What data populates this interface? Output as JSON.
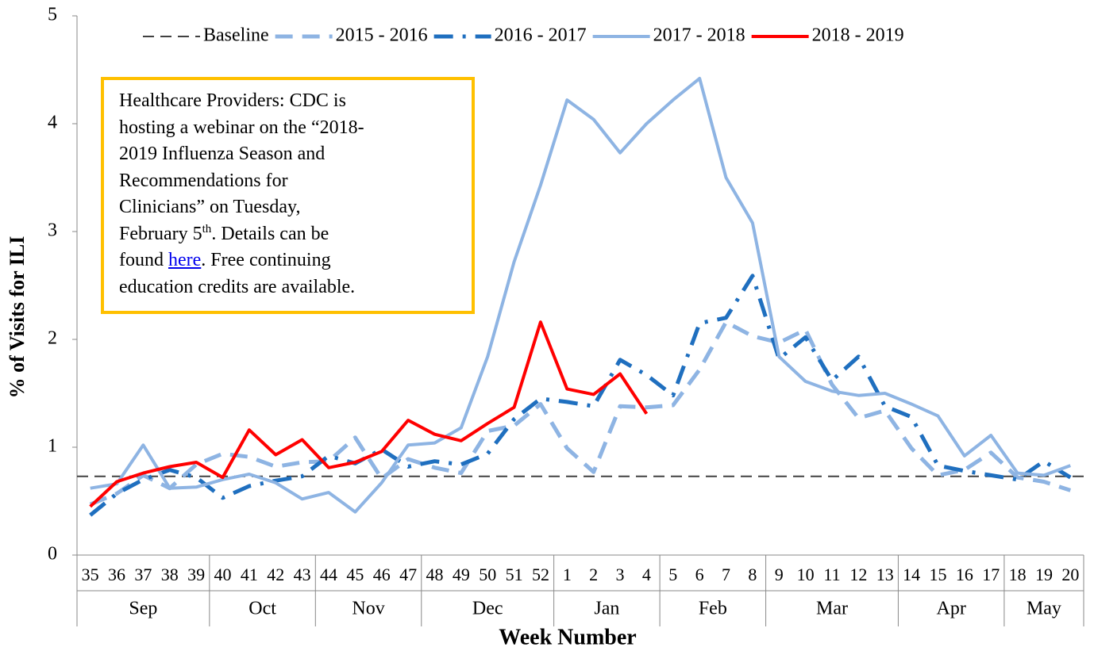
{
  "chart_data": {
    "type": "line",
    "x_label": "Week Number",
    "y_label": "% of Visits for ILI",
    "categories": [
      "35",
      "36",
      "37",
      "38",
      "39",
      "40",
      "41",
      "42",
      "43",
      "44",
      "45",
      "46",
      "47",
      "48",
      "49",
      "50",
      "51",
      "52",
      "1",
      "2",
      "3",
      "4",
      "5",
      "6",
      "7",
      "8",
      "9",
      "10",
      "11",
      "12",
      "13",
      "14",
      "15",
      "16",
      "17",
      "18",
      "19",
      "20"
    ],
    "month_groups": [
      {
        "label": "Sep",
        "span": 5
      },
      {
        "label": "Oct",
        "span": 4
      },
      {
        "label": "Nov",
        "span": 4
      },
      {
        "label": "Dec",
        "span": 5
      },
      {
        "label": "Jan",
        "span": 4
      },
      {
        "label": "Feb",
        "span": 4
      },
      {
        "label": "Mar",
        "span": 5
      },
      {
        "label": "Apr",
        "span": 4
      },
      {
        "label": "May",
        "span": 3
      }
    ],
    "ylim": [
      0,
      5
    ],
    "yticks": [
      0,
      1,
      2,
      3,
      4,
      5
    ],
    "baseline": {
      "name": "Baseline",
      "value": 0.73,
      "color": "#404040",
      "dash": "dash"
    },
    "series": [
      {
        "name": "2015 - 2016",
        "color": "#8eb4e3",
        "dash": "dash",
        "values": [
          0.47,
          0.57,
          0.74,
          0.62,
          0.84,
          0.94,
          0.91,
          0.82,
          0.86,
          0.87,
          1.09,
          0.71,
          0.89,
          0.81,
          0.76,
          1.15,
          1.2,
          1.4,
          0.99,
          0.77,
          1.38,
          1.37,
          1.39,
          1.72,
          2.16,
          2.03,
          1.97,
          2.09,
          1.58,
          1.27,
          1.34,
          0.99,
          0.74,
          0.79,
          0.95,
          0.72,
          0.68,
          0.6
        ]
      },
      {
        "name": "2016 - 2017",
        "color": "#1f6fbf",
        "dash": "dash-dot",
        "values": [
          0.37,
          0.57,
          0.7,
          0.79,
          0.72,
          0.53,
          0.64,
          0.69,
          0.73,
          0.92,
          0.85,
          0.98,
          0.82,
          0.87,
          0.84,
          0.94,
          1.26,
          1.45,
          1.42,
          1.38,
          1.81,
          1.67,
          1.48,
          2.15,
          2.2,
          2.59,
          1.82,
          2.02,
          1.62,
          1.84,
          1.38,
          1.28,
          0.83,
          0.78,
          0.74,
          0.7,
          0.87,
          0.72
        ]
      },
      {
        "name": "2017 - 2018",
        "color": "#8eb4e3",
        "dash": "solid",
        "values": [
          0.62,
          0.66,
          1.02,
          0.62,
          0.63,
          0.7,
          0.75,
          0.67,
          0.52,
          0.58,
          0.4,
          0.67,
          1.02,
          1.04,
          1.18,
          1.84,
          2.72,
          3.43,
          4.22,
          4.04,
          3.73,
          4.0,
          4.22,
          4.42,
          3.5,
          3.08,
          1.84,
          1.61,
          1.52,
          1.48,
          1.5,
          1.4,
          1.29,
          0.92,
          1.11,
          0.76,
          0.74,
          0.83
        ]
      },
      {
        "name": "2018 - 2019",
        "color": "#ff0000",
        "dash": "solid",
        "values": [
          0.45,
          0.68,
          0.76,
          0.82,
          0.86,
          0.72,
          1.16,
          0.93,
          1.07,
          0.81,
          0.86,
          0.96,
          1.25,
          1.12,
          1.06,
          1.22,
          1.37,
          2.16,
          1.54,
          1.49,
          1.68,
          1.31,
          null,
          null,
          null,
          null,
          null,
          null,
          null,
          null,
          null,
          null,
          null,
          null,
          null,
          null,
          null,
          null
        ]
      }
    ],
    "annotation": {
      "lines": [
        "Healthcare Providers: CDC is",
        "hosting a webinar on the “2018-",
        "2019 Influenza Season and",
        "Recommendations for",
        "Clinicians” on Tuesday,"
      ],
      "february_line": [
        "February 5",
        "th",
        ". Details can be"
      ],
      "found_line": [
        "found ",
        "here",
        ". Free continuing"
      ],
      "last_line": "education credits are available.",
      "border_color": "#ffc000"
    }
  }
}
